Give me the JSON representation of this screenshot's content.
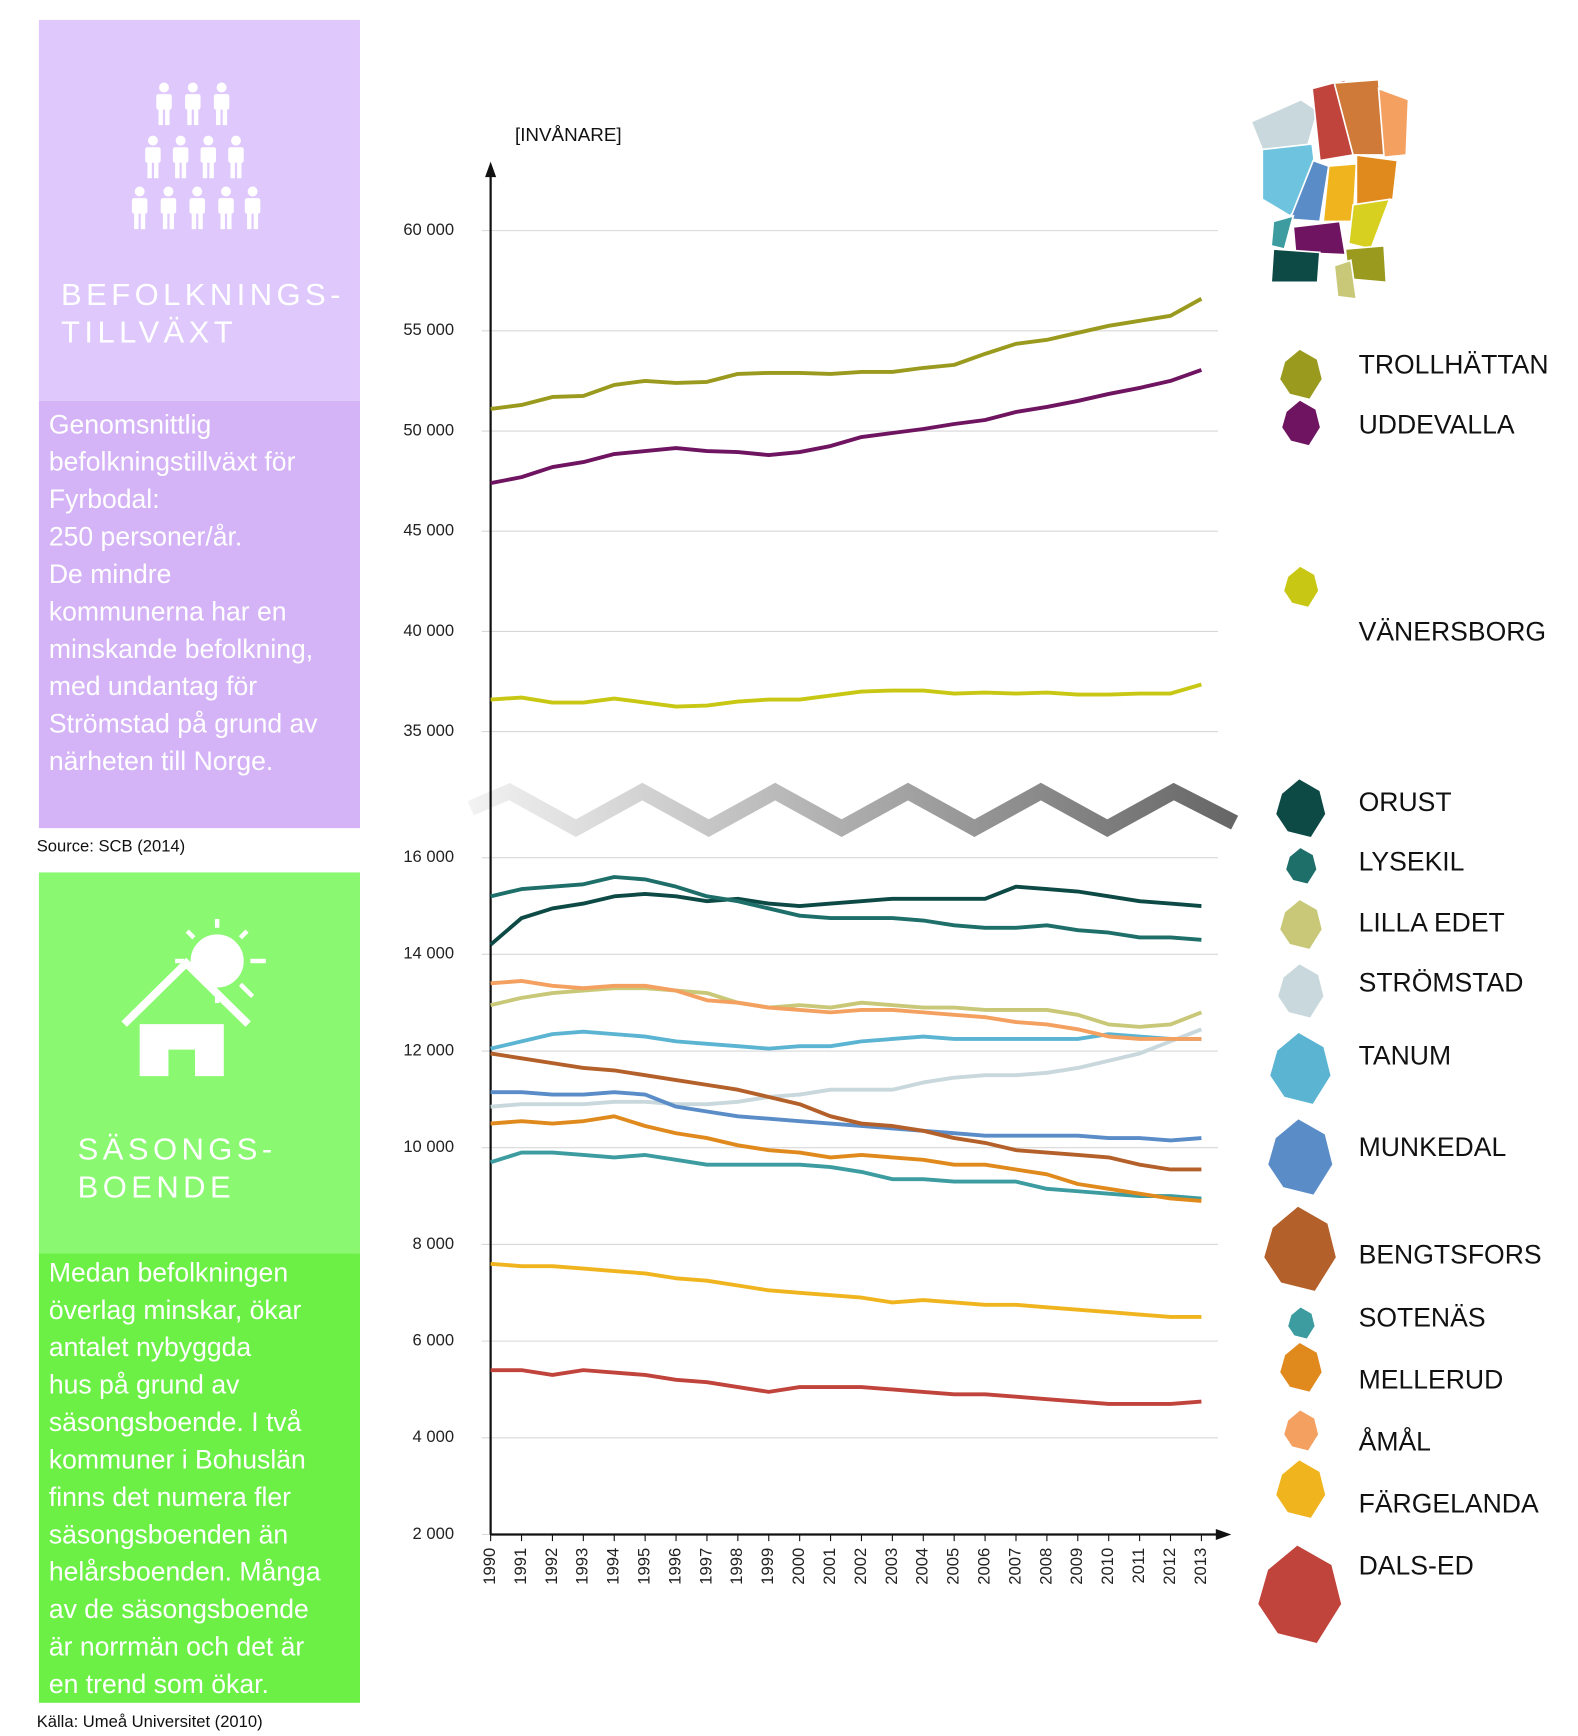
{
  "info": {
    "population": {
      "heading": [
        "BEFOLKNINGS-",
        "TILLVÄXT"
      ],
      "text": [
        "Genomsnittlig",
        "befolkningstillväxt för",
        "Fyrbodal:",
        "250 personer/år.",
        "De mindre",
        "kommunerna har en",
        "minskande befolkning,",
        "med undantag för",
        "Strömstad på grund av",
        "närheten till Norge."
      ],
      "source": "Source:  SCB (2014)"
    },
    "season": {
      "heading": [
        "SÄSONGS-",
        "BOENDE"
      ],
      "text": [
        "Medan befolkningen",
        "överlag minskar, ökar",
        "antalet nybyggda",
        "hus på grund av",
        "säsongsboende. I två",
        "kommuner i Bohuslän",
        "finns det numera fler",
        "säsongsboenden än",
        "helårsboenden. Många",
        "av de säsongsboende",
        "är norrmän och det är",
        "en trend som ökar."
      ],
      "source": "Källa:  Umeå Universitet (2010)"
    }
  },
  "chart_data": {
    "type": "line",
    "y_label": "[INVÅNARE]",
    "x": [
      1990,
      1991,
      1992,
      1993,
      1994,
      1995,
      1996,
      1997,
      1998,
      1999,
      2000,
      2001,
      2002,
      2003,
      2004,
      2005,
      2006,
      2007,
      2008,
      2009,
      2010,
      2011,
      2012,
      2013
    ],
    "xlim": [
      1990,
      2013
    ],
    "ylim": [
      33000,
      63000
    ],
    "yticks": [
      {
        "value": 35000,
        "label": "35 000"
      },
      {
        "value": 40000,
        "label": "40 000"
      },
      {
        "value": 45000,
        "label": "45 000"
      },
      {
        "value": 50000,
        "label": "50 000"
      },
      {
        "value": 55000,
        "label": "55 000"
      },
      {
        "value": 60000,
        "label": "60 000"
      }
    ],
    "y2lim": [
      2000,
      17000
    ],
    "y2ticks": [
      {
        "value": 2000,
        "label": "2 000"
      },
      {
        "value": 4000,
        "label": "4 000"
      },
      {
        "value": 6000,
        "label": "6 000"
      },
      {
        "value": 8000,
        "label": "8 000"
      },
      {
        "value": 10000,
        "label": "10 000"
      },
      {
        "value": 12000,
        "label": "12 000"
      },
      {
        "value": 14000,
        "label": "14 000"
      },
      {
        "value": 16000,
        "label": "16 000"
      }
    ],
    "grid": true,
    "series": [
      {
        "name": "TROLLHÄTTAN",
        "color": "#9a9a1e",
        "values": [
          51100,
          51300,
          51700,
          51750,
          52300,
          52500,
          52400,
          52450,
          52850,
          52900,
          52900,
          52850,
          52950,
          52950,
          53150,
          53300,
          53850,
          54350,
          54550,
          54900,
          55250,
          55500,
          55750,
          56600
        ]
      },
      {
        "name": "UDDEVALLA",
        "color": "#6e1460",
        "values": [
          47400,
          47700,
          48200,
          48450,
          48850,
          49000,
          49150,
          49000,
          48950,
          48800,
          48950,
          49250,
          49700,
          49900,
          50100,
          50350,
          50550,
          50950,
          51200,
          51500,
          51850,
          52150,
          52500,
          53050
        ]
      },
      {
        "name": "VÄNERSBORG",
        "color": "#c8c814",
        "values": [
          36600,
          36700,
          36450,
          36450,
          36650,
          36450,
          36250,
          36300,
          36500,
          36600,
          36600,
          36800,
          37000,
          37050,
          37050,
          36900,
          36950,
          36900,
          36950,
          36850,
          36850,
          36900,
          36900,
          37350
        ]
      },
      {
        "name": "ORUST",
        "color": "#0d4a45",
        "axis": "y2",
        "values": [
          14200,
          14750,
          14950,
          15050,
          15200,
          15250,
          15200,
          15100,
          15150,
          15050,
          15000,
          15050,
          15100,
          15150,
          15150,
          15150,
          15150,
          15400,
          15350,
          15300,
          15200,
          15100,
          15050,
          15000
        ]
      },
      {
        "name": "LYSEKIL",
        "color": "#1e6e6a",
        "axis": "y2",
        "values": [
          15200,
          15350,
          15400,
          15450,
          15600,
          15550,
          15400,
          15200,
          15100,
          14950,
          14800,
          14750,
          14750,
          14750,
          14700,
          14600,
          14550,
          14550,
          14600,
          14500,
          14450,
          14350,
          14350,
          14300
        ]
      },
      {
        "name": "LILLA EDET",
        "color": "#c8c878",
        "axis": "y2",
        "values": [
          12950,
          13100,
          13200,
          13250,
          13300,
          13300,
          13250,
          13200,
          13000,
          12900,
          12950,
          12900,
          13000,
          12950,
          12900,
          12900,
          12850,
          12850,
          12850,
          12750,
          12550,
          12500,
          12550,
          12800
        ]
      },
      {
        "name": "STRÖMSTAD",
        "color": "#c8d8dc",
        "axis": "y2",
        "values": [
          10850,
          10900,
          10900,
          10900,
          10950,
          10950,
          10900,
          10900,
          10950,
          11050,
          11100,
          11200,
          11200,
          11200,
          11350,
          11450,
          11500,
          11500,
          11550,
          11650,
          11800,
          11950,
          12200,
          12450
        ]
      },
      {
        "name": "TANUM",
        "color": "#5ab4d2",
        "axis": "y2",
        "values": [
          12050,
          12200,
          12350,
          12400,
          12350,
          12300,
          12200,
          12150,
          12100,
          12050,
          12100,
          12100,
          12200,
          12250,
          12300,
          12250,
          12250,
          12250,
          12250,
          12250,
          12350,
          12300,
          12250,
          12250
        ]
      },
      {
        "name": "MUNKEDAL",
        "color": "#5a8cc8",
        "axis": "y2",
        "values": [
          11150,
          11150,
          11100,
          11100,
          11150,
          11100,
          10850,
          10750,
          10650,
          10600,
          10550,
          10500,
          10450,
          10400,
          10350,
          10300,
          10250,
          10250,
          10250,
          10250,
          10200,
          10200,
          10150,
          10200
        ]
      },
      {
        "name": "BENGTSFORS",
        "color": "#b4602a",
        "axis": "y2",
        "values": [
          11950,
          11850,
          11750,
          11650,
          11600,
          11500,
          11400,
          11300,
          11200,
          11050,
          10900,
          10650,
          10500,
          10450,
          10350,
          10200,
          10100,
          9950,
          9900,
          9850,
          9800,
          9650,
          9550,
          9550
        ]
      },
      {
        "name": "SOTENÄS",
        "color": "#3c9ca0",
        "axis": "y2",
        "values": [
          9700,
          9900,
          9900,
          9850,
          9800,
          9850,
          9750,
          9650,
          9650,
          9650,
          9650,
          9600,
          9500,
          9350,
          9350,
          9300,
          9300,
          9300,
          9150,
          9100,
          9050,
          9000,
          9000,
          8950
        ]
      },
      {
        "name": "MELLERUD",
        "color": "#e08a1e",
        "axis": "y2",
        "values": [
          10500,
          10550,
          10500,
          10550,
          10650,
          10450,
          10300,
          10200,
          10050,
          9950,
          9900,
          9800,
          9850,
          9800,
          9750,
          9650,
          9650,
          9550,
          9450,
          9250,
          9150,
          9050,
          8950,
          8900
        ]
      },
      {
        "name": "ÅMÅL",
        "color": "#f4a060",
        "axis": "y2",
        "values": [
          13400,
          13450,
          13350,
          13300,
          13350,
          13350,
          13250,
          13050,
          13000,
          12900,
          12850,
          12800,
          12850,
          12850,
          12800,
          12750,
          12700,
          12600,
          12550,
          12450,
          12300,
          12250,
          12250,
          12250
        ]
      },
      {
        "name": "FÄRGELANDA",
        "color": "#f0b41e",
        "axis": "y2",
        "values": [
          7600,
          7550,
          7550,
          7500,
          7450,
          7400,
          7300,
          7250,
          7150,
          7050,
          7000,
          6950,
          6900,
          6800,
          6850,
          6800,
          6750,
          6750,
          6700,
          6650,
          6600,
          6550,
          6500,
          6500
        ]
      },
      {
        "name": "DALS-ED",
        "color": "#c0443c",
        "axis": "y2",
        "values": [
          5400,
          5400,
          5300,
          5400,
          5350,
          5300,
          5200,
          5150,
          5050,
          4950,
          5050,
          5050,
          5050,
          5000,
          4950,
          4900,
          4900,
          4850,
          4800,
          4750,
          4700,
          4700,
          4700,
          4750
        ]
      }
    ]
  }
}
